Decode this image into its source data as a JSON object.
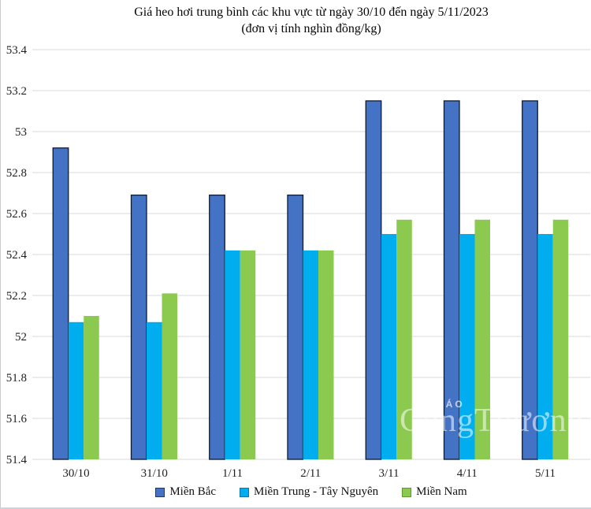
{
  "watermark": {
    "line1": "BÁO",
    "line2": "CôngThương"
  },
  "chart_data": {
    "type": "bar",
    "title": "Giá heo hơi trung bình các khu vực từ ngày 30/10 đến ngày 5/11/2023",
    "subtitle": "(đơn vị tính nghìn đồng/kg)",
    "categories": [
      "30/10",
      "31/10",
      "1/11",
      "2/11",
      "3/11",
      "4/11",
      "5/11"
    ],
    "series": [
      {
        "name": "Miền Bắc",
        "color": "#4472C4",
        "bar_border": "#0d1a33",
        "chip_border": "#1F3864",
        "values": [
          52.92,
          52.69,
          52.69,
          52.69,
          53.15,
          53.15,
          53.15
        ]
      },
      {
        "name": "Miền Trung - Tây Nguyên",
        "color": "#00AEEF",
        "bar_border": null,
        "chip_border": "#0E76A8",
        "values": [
          52.07,
          52.07,
          52.42,
          52.42,
          52.5,
          52.5,
          52.5
        ]
      },
      {
        "name": "Miền Nam",
        "color": "#8CC94F",
        "bar_border": null,
        "chip_border": "#5F9B2C",
        "values": [
          52.1,
          52.21,
          52.42,
          52.42,
          52.57,
          52.57,
          52.57
        ]
      }
    ],
    "ylim": [
      51.4,
      53.4
    ],
    "yticks": [
      {
        "v": 53.4,
        "label": "53.4"
      },
      {
        "v": 53.2,
        "label": "53.2"
      },
      {
        "v": 53.0,
        "label": "53"
      },
      {
        "v": 52.8,
        "label": "52.8"
      },
      {
        "v": 52.6,
        "label": "52.6"
      },
      {
        "v": 52.4,
        "label": "52.4"
      },
      {
        "v": 52.2,
        "label": "52.2"
      },
      {
        "v": 52.0,
        "label": "52"
      },
      {
        "v": 51.8,
        "label": "51.8"
      },
      {
        "v": 51.6,
        "label": "51.6"
      },
      {
        "v": 51.4,
        "label": "51.4"
      }
    ],
    "grid": true,
    "gridline_color": "#D9D9D9",
    "legend_position": "bottom"
  }
}
